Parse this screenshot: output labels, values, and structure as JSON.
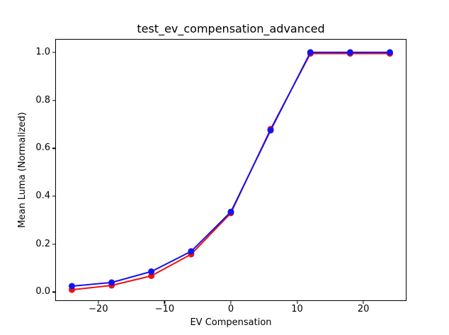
{
  "chart_data": {
    "type": "line",
    "title": "test_ev_compensation_advanced",
    "xlabel": "EV Compensation",
    "ylabel": "Mean Luma (Normalized)",
    "x": [
      -24,
      -18,
      -12,
      -6,
      0,
      6,
      12,
      18,
      24
    ],
    "series": [
      {
        "name": "red-series",
        "color": "#ee1111",
        "marker": "circle",
        "values": [
          0.01,
          0.028,
          0.068,
          0.158,
          0.33,
          0.68,
          0.995,
          0.995,
          0.995
        ]
      },
      {
        "name": "blue-series",
        "color": "#1414ee",
        "marker": "circle",
        "values": [
          0.025,
          0.04,
          0.086,
          0.17,
          0.335,
          0.675,
          1.0,
          1.0,
          1.0
        ]
      }
    ],
    "xlim": [
      -26.4,
      26.4
    ],
    "ylim": [
      -0.034,
      1.053
    ],
    "x_ticks": [
      {
        "v": -20,
        "label": "−20"
      },
      {
        "v": -10,
        "label": "−10"
      },
      {
        "v": 0,
        "label": "0"
      },
      {
        "v": 10,
        "label": "10"
      },
      {
        "v": 20,
        "label": "20"
      }
    ],
    "y_ticks": [
      {
        "v": 0.0,
        "label": "0.0"
      },
      {
        "v": 0.2,
        "label": "0.2"
      },
      {
        "v": 0.4,
        "label": "0.4"
      },
      {
        "v": 0.6,
        "label": "0.6"
      },
      {
        "v": 0.8,
        "label": "0.8"
      },
      {
        "v": 1.0,
        "label": "1.0"
      }
    ],
    "grid": false,
    "legend": null,
    "background": "#ffffff"
  }
}
